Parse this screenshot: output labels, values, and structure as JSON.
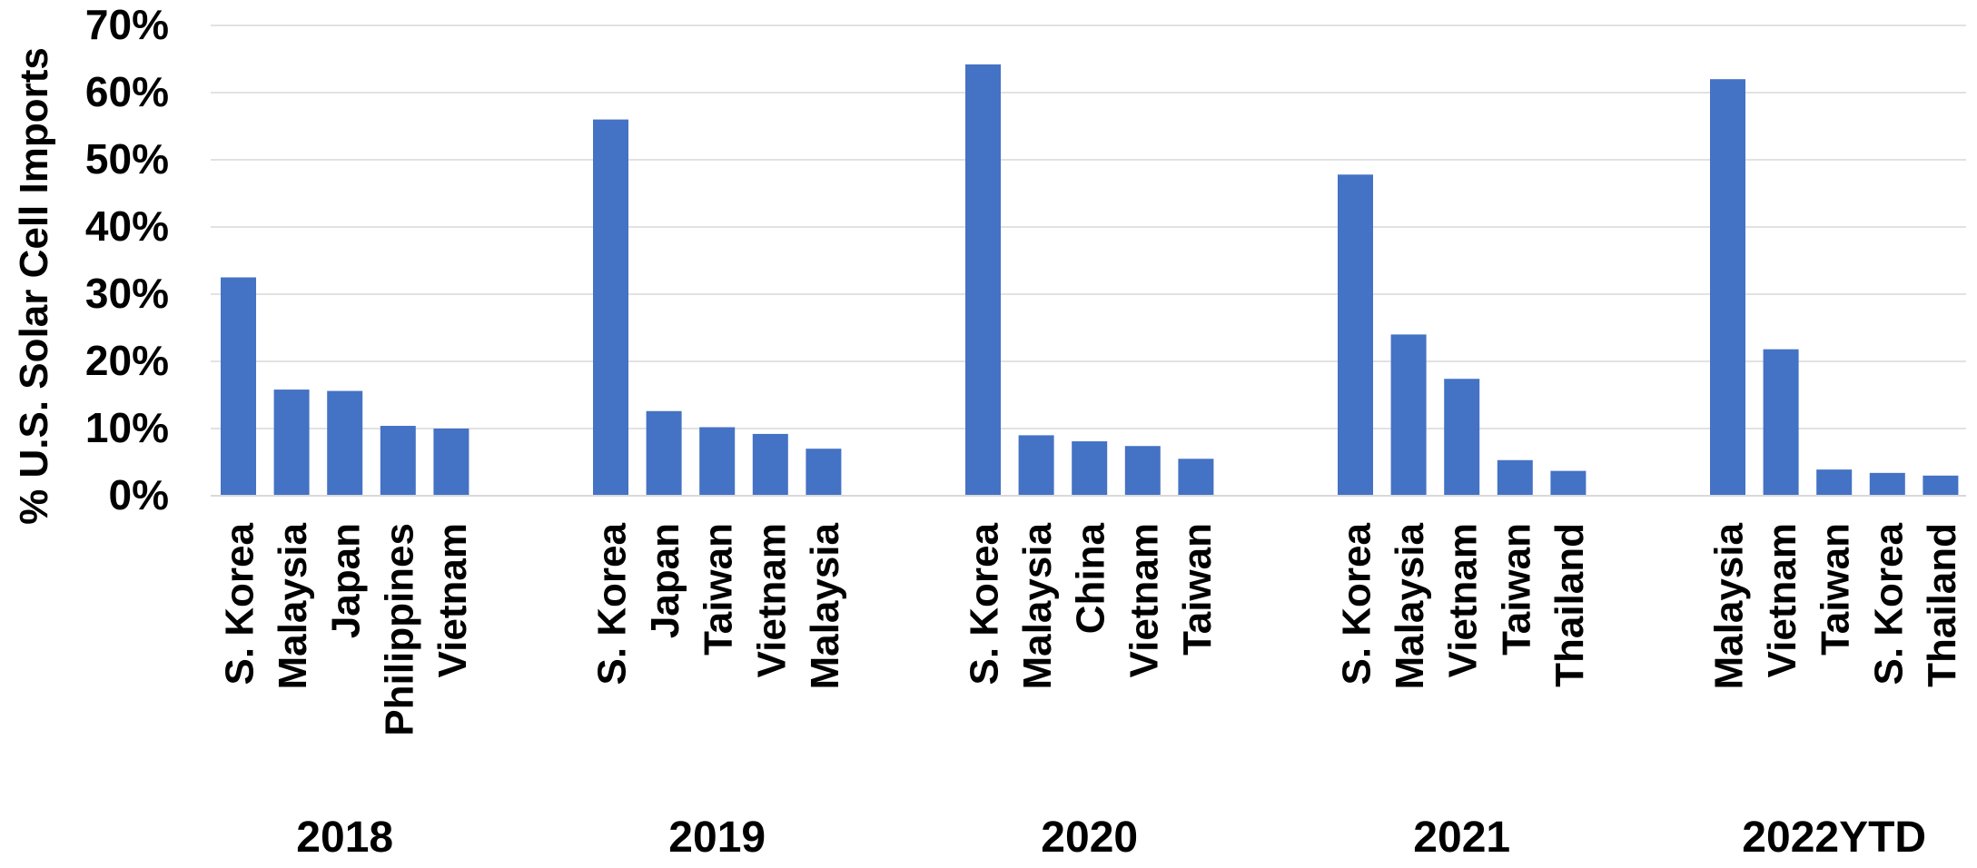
{
  "chart_data": {
    "type": "bar",
    "title": "",
    "ylabel": "% U.S. Solar Cell Imports",
    "xlabel": "",
    "ylim": [
      0,
      70
    ],
    "y_ticks": [
      "0%",
      "10%",
      "20%",
      "30%",
      "40%",
      "50%",
      "60%",
      "70%"
    ],
    "grid": true,
    "bar_color": "#4472C4",
    "groups": [
      {
        "label": "2018",
        "categories": [
          "S. Korea",
          "Malaysia",
          "Japan",
          "Philippines",
          "Vietnam"
        ],
        "values": [
          32.5,
          15.8,
          15.6,
          10.4,
          10.0
        ]
      },
      {
        "label": "2019",
        "categories": [
          "S. Korea",
          "Japan",
          "Taiwan",
          "Vietnam",
          "Malaysia"
        ],
        "values": [
          56.0,
          12.6,
          10.2,
          9.2,
          7.0
        ]
      },
      {
        "label": "2020",
        "categories": [
          "S. Korea",
          "Malaysia",
          "China",
          "Vietnam",
          "Taiwan"
        ],
        "values": [
          64.2,
          9.0,
          8.1,
          7.4,
          5.5
        ]
      },
      {
        "label": "2021",
        "categories": [
          "S. Korea",
          "Malaysia",
          "Vietnam",
          "Taiwan",
          "Thailand"
        ],
        "values": [
          47.8,
          24.0,
          17.4,
          5.3,
          3.7
        ]
      },
      {
        "label": "2022YTD",
        "categories": [
          "Malaysia",
          "Vietnam",
          "Taiwan",
          "S. Korea",
          "Thailand"
        ],
        "values": [
          62.0,
          21.8,
          3.9,
          3.4,
          3.0
        ]
      }
    ]
  }
}
